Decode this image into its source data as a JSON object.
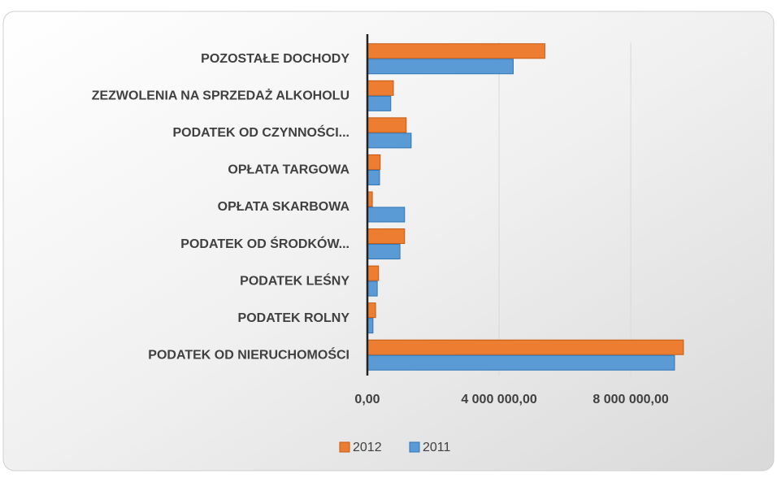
{
  "chart_data": {
    "type": "bar",
    "orientation": "horizontal",
    "categories": [
      "POZOSTAŁE DOCHODY",
      "ZEZWOLENIA NA SPRZEDAŻ ALKOHOLU",
      "PODATEK OD CZYNNOŚCI...",
      "OPŁATA TARGOWA",
      "OPŁATA SKARBOWA",
      "PODATEK OD ŚRODKÓW...",
      "PODATEK LEŚNY",
      "PODATEK ROLNY",
      "PODATEK OD NIERUCHOMOŚCI"
    ],
    "series": [
      {
        "name": "2012",
        "color": "#ed7d31",
        "values": [
          5390000,
          790000,
          1180000,
          390000,
          150000,
          1130000,
          340000,
          250000,
          9600000
        ]
      },
      {
        "name": "2011",
        "color": "#5b9bd5",
        "values": [
          4430000,
          710000,
          1330000,
          370000,
          1130000,
          990000,
          300000,
          170000,
          9330000
        ]
      }
    ],
    "xlim": [
      0,
      11800000
    ],
    "xticks": [
      {
        "value": 0,
        "label": "0,00"
      },
      {
        "value": 4000000,
        "label": "4 000 000,00"
      },
      {
        "value": 8000000,
        "label": "8 000 000,00"
      }
    ],
    "grid": true,
    "legend": "bottom"
  }
}
